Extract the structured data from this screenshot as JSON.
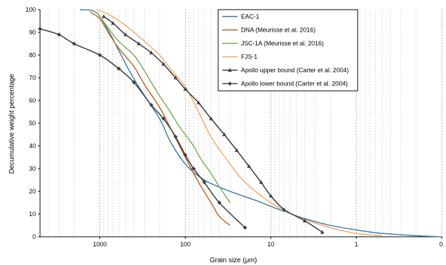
{
  "chart_data": {
    "type": "line",
    "xlabel": "Grain size (μm)",
    "ylabel": "Decumulative weight percentage",
    "x_scale": "log",
    "x_reversed": true,
    "xlim": [
      5000,
      0.1
    ],
    "ylim": [
      0,
      100
    ],
    "x_tick_labels": [
      {
        "value": 1000,
        "label": "1000"
      },
      {
        "value": 100,
        "label": "100"
      },
      {
        "value": 10,
        "label": "10"
      },
      {
        "value": 1,
        "label": "1"
      },
      {
        "value": 0.1,
        "label": "0."
      }
    ],
    "y_ticks": [
      0,
      10,
      20,
      30,
      40,
      50,
      60,
      70,
      80,
      90,
      100
    ],
    "grid": "vertical-minor",
    "legend_position": "top-right",
    "series": [
      {
        "name": "EAC-1",
        "color": "#2E75B6",
        "marker": "none",
        "x": [
          1700,
          1200,
          1000,
          800,
          600,
          450,
          350,
          200,
          150,
          100,
          60,
          30,
          15,
          8,
          4,
          2,
          1,
          0.5,
          0.2,
          0.1
        ],
        "y": [
          100,
          99.5,
          97,
          91,
          82,
          73,
          66,
          52,
          42,
          32,
          25,
          20,
          16,
          12,
          8,
          5,
          3,
          1.5,
          0.5,
          0
        ]
      },
      {
        "name": "DNA (Meurisse et al. 2016)",
        "color": "#C55A11",
        "marker": "none",
        "x": [
          1300,
          1000,
          800,
          600,
          400,
          300,
          200,
          150,
          100,
          70,
          50,
          40,
          30
        ],
        "y": [
          99,
          96,
          90,
          83,
          75,
          67,
          57,
          48,
          35,
          24,
          15,
          9,
          5
        ]
      },
      {
        "name": "JSC-1A (Meurisse et al. 2016)",
        "color": "#70AD47",
        "marker": "none",
        "x": [
          1100,
          1000,
          800,
          600,
          400,
          300,
          250,
          200,
          150,
          120,
          100,
          80,
          70,
          60,
          50,
          40,
          30
        ],
        "y": [
          99,
          97,
          92,
          86,
          80,
          73,
          68,
          62,
          55,
          49,
          45,
          40,
          36,
          32,
          28,
          22,
          15
        ]
      },
      {
        "name": "FJS-1",
        "color": "#F4A460",
        "marker": "none",
        "x": [
          1100,
          800,
          500,
          300,
          200,
          150,
          100,
          70,
          50,
          30,
          20,
          10,
          5,
          2,
          1,
          0.5
        ],
        "y": [
          100,
          98,
          93,
          86,
          80,
          74,
          66,
          55,
          44,
          32,
          24,
          15,
          9,
          4,
          1.5,
          0.5
        ]
      },
      {
        "name": "Apollo upper bound (Carter et al. 2004)",
        "color": "#404040",
        "marker": "triangle",
        "x": [
          900,
          700,
          500,
          350,
          250,
          180,
          130,
          100,
          70,
          50,
          35,
          25,
          18,
          13,
          10,
          7,
          4,
          2.5
        ],
        "y": [
          97,
          94,
          89,
          85,
          81,
          76,
          70,
          65,
          59,
          52,
          45,
          38,
          31,
          24,
          18,
          12,
          7,
          2
        ]
      },
      {
        "name": "Apollo lower bound (Carter et al. 2004)",
        "color": "#404040",
        "marker": "diamond",
        "x": [
          5000,
          3000,
          2000,
          1000,
          600,
          400,
          250,
          180,
          130,
          100,
          80,
          60,
          40,
          20
        ],
        "y": [
          91.5,
          89,
          85,
          80,
          74,
          68,
          58,
          52,
          44,
          36,
          30,
          24,
          15,
          4
        ]
      }
    ]
  }
}
